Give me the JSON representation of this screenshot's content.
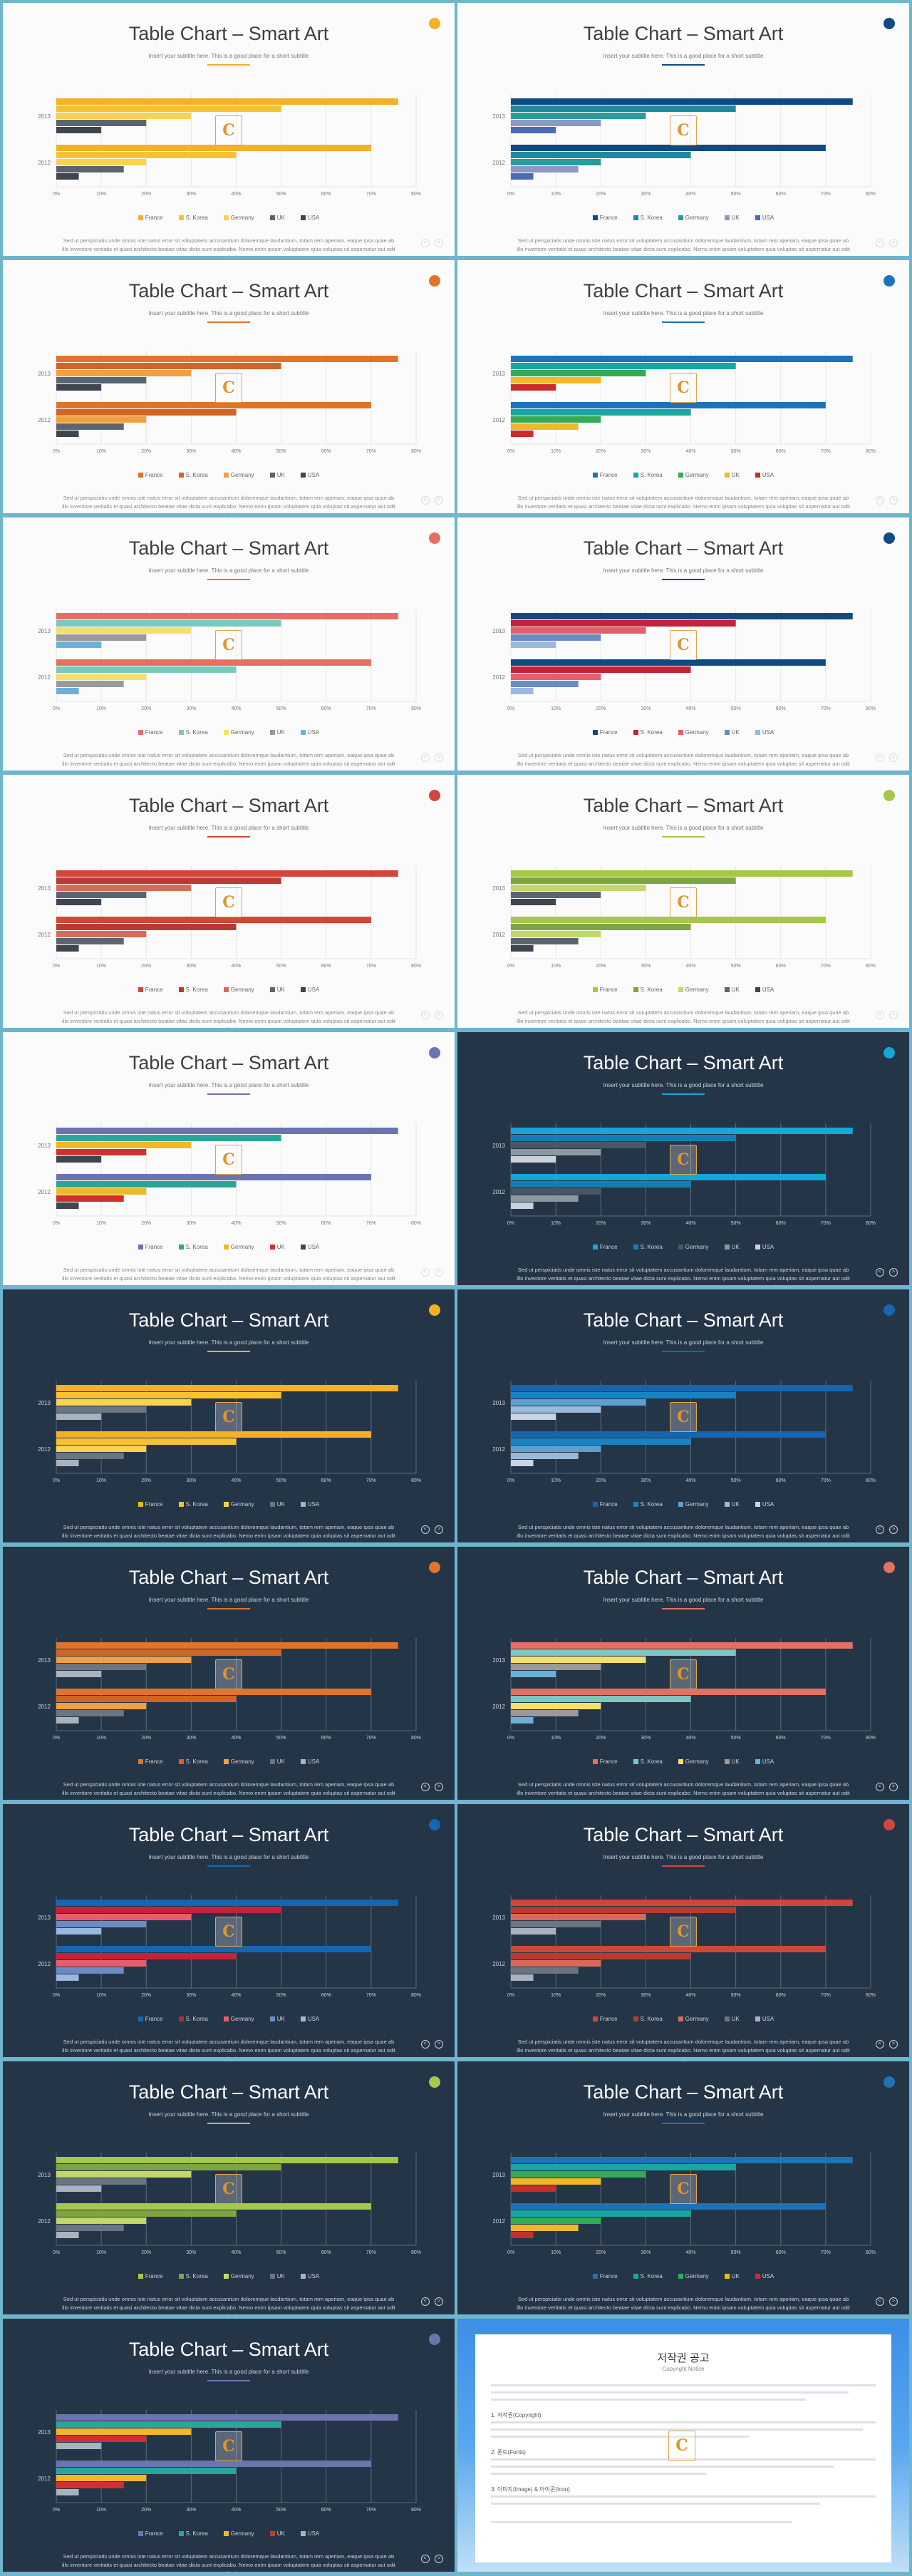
{
  "slide_title": "Table Chart – Smart Art",
  "slide_subtitle": "Insert your subtitle here. This is a good place for a short subtitle",
  "body_text": "Sed ut perspiciatis unde omnis iste natus error sit voluptatem accusantium doloremque laudantium, totam rem aperiam, eaque ipsa quae ab illo inventore veritatis et quasi architecto beatae vitae dicta sunt explicabo. Nemo enim ipsam voluptatem quia voluptas sit aspernatur aut odit aut fugit.",
  "logo_letter": "C",
  "legend_labels": [
    "France",
    "S. Korea",
    "Germany",
    "UK",
    "USA"
  ],
  "page_nav": [
    "<",
    ">"
  ],
  "chart_data": {
    "type": "bar",
    "orientation": "horizontal",
    "categories": [
      "2013",
      "2012"
    ],
    "x_ticks": [
      "0%",
      "10%",
      "20%",
      "30%",
      "40%",
      "50%",
      "60%",
      "70%",
      "80%"
    ],
    "xlim": [
      0,
      80
    ],
    "series": [
      {
        "name": "France",
        "values": [
          76,
          70
        ]
      },
      {
        "name": "S. Korea",
        "values": [
          50,
          40
        ]
      },
      {
        "name": "Germany",
        "values": [
          30,
          20
        ]
      },
      {
        "name": "UK",
        "values": [
          20,
          15
        ]
      },
      {
        "name": "USA",
        "values": [
          10,
          5
        ]
      }
    ],
    "legend_position": "bottom"
  },
  "slides": [
    {
      "theme": "light",
      "accent": "#f4b126",
      "colors": [
        "#f4b126",
        "#f6c234",
        "#f9d250",
        "#5c6470",
        "#3f4650"
      ]
    },
    {
      "theme": "light",
      "accent": "#0f4a82",
      "colors": [
        "#0f4a82",
        "#1f8a9e",
        "#2a9a9e",
        "#8f97c8",
        "#4b6bb2"
      ]
    },
    {
      "theme": "light",
      "accent": "#e0742a",
      "colors": [
        "#e0742a",
        "#d06525",
        "#f0a040",
        "#5c6470",
        "#3f4650"
      ]
    },
    {
      "theme": "light",
      "accent": "#1e73b8",
      "colors": [
        "#1e73b8",
        "#18a7a0",
        "#33aa55",
        "#f0b829",
        "#c82c2c"
      ]
    },
    {
      "theme": "light",
      "accent": "#e46f62",
      "colors": [
        "#e46f62",
        "#7ac9c0",
        "#f4e06b",
        "#9a9a9a",
        "#6cb0d6"
      ]
    },
    {
      "theme": "light",
      "accent": "#0f4a82",
      "colors": [
        "#0f4a82",
        "#c2223a",
        "#e85d6d",
        "#6b8cc3",
        "#9ab8e0"
      ]
    },
    {
      "theme": "light",
      "accent": "#d0473a",
      "colors": [
        "#d0473a",
        "#b83a30",
        "#d66a5a",
        "#5c6470",
        "#3f4650"
      ]
    },
    {
      "theme": "light",
      "accent": "#a6c84a",
      "colors": [
        "#a6c84a",
        "#7ea540",
        "#c2d96a",
        "#5c6470",
        "#3f4650"
      ]
    },
    {
      "theme": "light",
      "accent": "#6b74b0",
      "colors": [
        "#6b74b0",
        "#2aa699",
        "#f0b829",
        "#d23030",
        "#3f4650"
      ]
    },
    {
      "theme": "dark",
      "accent": "#15a7d8",
      "colors": [
        "#15a7d8",
        "#137fb0",
        "#4a5664",
        "#8c97a4",
        "#c9d2dc"
      ]
    },
    {
      "theme": "dark",
      "accent": "#f4b126",
      "colors": [
        "#f4b126",
        "#f6c234",
        "#f9d250",
        "#6a7582",
        "#a9b3bf"
      ]
    },
    {
      "theme": "dark",
      "accent": "#1565b0",
      "colors": [
        "#1565b0",
        "#1b82c0",
        "#5d9fd1",
        "#9bb9d9",
        "#c7d5e6"
      ]
    },
    {
      "theme": "dark",
      "accent": "#e0742a",
      "colors": [
        "#e0742a",
        "#d06525",
        "#f0a040",
        "#6a7582",
        "#a9b3bf"
      ]
    },
    {
      "theme": "dark",
      "accent": "#e46f62",
      "colors": [
        "#e46f62",
        "#7ac9c0",
        "#f4e06b",
        "#9a9a9a",
        "#6cb0d6"
      ]
    },
    {
      "theme": "dark",
      "accent": "#1565b0",
      "colors": [
        "#1565b0",
        "#c2223a",
        "#e85d6d",
        "#6b8cc3",
        "#9ab8e0"
      ]
    },
    {
      "theme": "dark",
      "accent": "#d0473a",
      "colors": [
        "#d0473a",
        "#b83a30",
        "#d66a5a",
        "#6a7582",
        "#a9b3bf"
      ]
    },
    {
      "theme": "dark",
      "accent": "#a6c84a",
      "colors": [
        "#a6c84a",
        "#7ea540",
        "#c2d96a",
        "#6a7582",
        "#a9b3bf"
      ]
    },
    {
      "theme": "dark",
      "accent": "#1e73b8",
      "colors": [
        "#1e73b8",
        "#18a7a0",
        "#33aa55",
        "#f0b829",
        "#c82c2c"
      ]
    },
    {
      "theme": "dark",
      "accent": "#6b74b0",
      "colors": [
        "#6b74b0",
        "#2aa699",
        "#f0b829",
        "#d23030",
        "#a9b3bf"
      ]
    }
  ],
  "copyright": {
    "title": "저작권 공고",
    "subtitle": "Copyright Notice",
    "sections": [
      "1. 저작권(Copyright)",
      "2. 폰트(Fonts)",
      "3. 이미지(Image) & 아이콘(Icon)"
    ]
  }
}
